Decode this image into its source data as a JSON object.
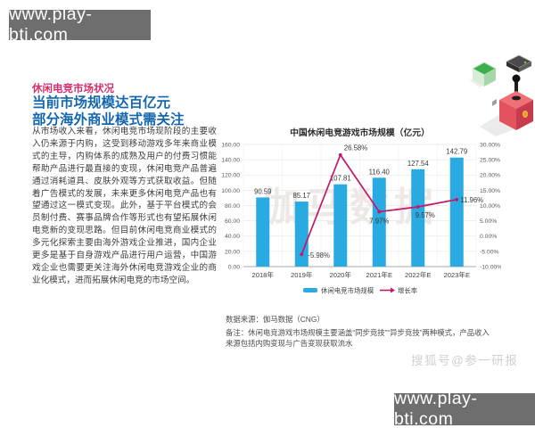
{
  "watermarks": {
    "top_left": "www.play-bti.com",
    "bottom_right": "www.play-bti.com",
    "chart_watermark": "伽马数据",
    "sohu": "搜狐号@参一研报"
  },
  "article": {
    "kicker": "休闲电竞市场状况",
    "headline_line1": "当前市场规模达百亿元",
    "headline_line2": "部分海外商业模式需关注",
    "body": "从市场收入来看，休闲电竞市场现阶段的主要收入仍来源于内购，这受到移动游戏多年来商业模式的主导，内购体系的成熟及用户的付费习惯能帮助产品进行最直接的变现，休闲电竞产品普遍通过消耗道具、皮肤外观等方式获取收益。但随着广告模式的发展，未来更多休闲电竞产品也有望通过这一模式变现。此外，基于平台模式的会员制付费、赛事品牌合作等形式也有望拓展休闲电竞新的变现思路。但目前休闲电竞商业模式的多元化探索主要由海外游戏企业推进，国内企业更多是基于自身游戏产品进行用户运营，中国游戏企业也需要更关注海外休闲电竞游戏企业的商业化模式，进而拓展休闲电竞的市场空间。"
  },
  "chart_data": {
    "type": "bar",
    "title": "中国休闲电竞游戏市场规模（亿元）",
    "categories": [
      "2018年",
      "2019年",
      "2020年",
      "2021年E",
      "2022年E",
      "2023年E"
    ],
    "series": [
      {
        "name": "休闲电竞市场规模",
        "type": "bar",
        "axis": "left",
        "values": [
          90.59,
          85.17,
          107.81,
          116.4,
          127.54,
          142.79
        ],
        "labels": [
          "90.59",
          "85.17",
          "107.81",
          "116.40",
          "127.54",
          "142.79"
        ],
        "color": "#29abe2"
      },
      {
        "name": "增长率",
        "type": "line",
        "axis": "right",
        "values": [
          null,
          -5.98,
          26.58,
          7.97,
          9.57,
          11.96
        ],
        "labels": [
          "",
          "-5.98%",
          "26.58%",
          "7.97%",
          "9.57%",
          "11.96%"
        ],
        "color": "#c2186b"
      }
    ],
    "left_axis": {
      "min": 0,
      "max": 160,
      "step": 20,
      "ticks": [
        "160.00",
        "140.00",
        "120.00",
        "100.00",
        "80.00",
        "60.00",
        "40.00",
        "20.00",
        "0.00"
      ]
    },
    "right_axis": {
      "min": -10,
      "max": 30,
      "step": 5,
      "ticks": [
        "30.00%",
        "25.00%",
        "20.00%",
        "15.00%",
        "10.00%",
        "5.00%",
        "0.00%",
        "-5.00%",
        "-10.00%"
      ]
    },
    "legend": [
      "休闲电竞市场规模",
      "增长率"
    ],
    "legend_position": "bottom",
    "grid": true
  },
  "footnotes": {
    "source": "数据来源：伽马数据（CNG）",
    "note": "备注：休闲电竞游戏市场规模主要涵盖“同步竞技”“异步竞技”两种模式，产品收入来源包括内购变现与广告变现获取流水"
  }
}
